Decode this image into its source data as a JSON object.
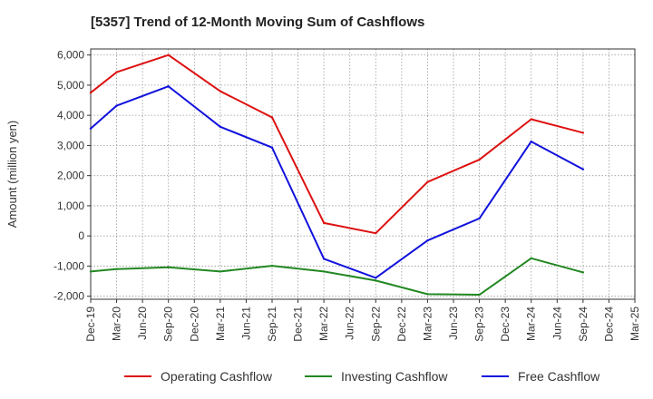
{
  "title": "[5357]  Trend of 12-Month Moving Sum of Cashflows",
  "chart_data": {
    "type": "line",
    "title": "[5357]  Trend of 12-Month Moving Sum of Cashflows",
    "xlabel": "",
    "ylabel": "Amount (million yen)",
    "ylim": [
      -2100,
      6200
    ],
    "yticks": [
      -2000,
      -1000,
      0,
      1000,
      2000,
      3000,
      4000,
      5000,
      6000
    ],
    "ytick_labels": [
      "-2,000",
      "-1,000",
      "0",
      "1,000",
      "2,000",
      "3,000",
      "4,000",
      "5,000",
      "6,000"
    ],
    "categories": [
      "Dec-19",
      "Mar-20",
      "Jun-20",
      "Sep-20",
      "Dec-20",
      "Mar-21",
      "Jun-21",
      "Sep-21",
      "Dec-21",
      "Mar-22",
      "Jun-22",
      "Sep-22",
      "Dec-22",
      "Mar-23",
      "Jun-23",
      "Sep-23",
      "Dec-23",
      "Mar-24",
      "Jun-24",
      "Sep-24",
      "Dec-24",
      "Mar-25"
    ],
    "grid": true,
    "legend": "bottom",
    "series": [
      {
        "name": "Operating Cashflow",
        "color": "#dd1111",
        "points": [
          [
            "Dec-19",
            4750
          ],
          [
            "Mar-20",
            5430
          ],
          [
            "Sep-20",
            6000
          ],
          [
            "Mar-21",
            4800
          ],
          [
            "Sep-21",
            3930
          ],
          [
            "Mar-22",
            430
          ],
          [
            "Sep-22",
            90
          ],
          [
            "Mar-23",
            1790
          ],
          [
            "Sep-23",
            2530
          ],
          [
            "Mar-24",
            3870
          ],
          [
            "Sep-24",
            3420
          ]
        ]
      },
      {
        "name": "Investing Cashflow",
        "color": "#228822",
        "points": [
          [
            "Dec-19",
            -1180
          ],
          [
            "Mar-20",
            -1100
          ],
          [
            "Sep-20",
            -1040
          ],
          [
            "Mar-21",
            -1180
          ],
          [
            "Sep-21",
            -990
          ],
          [
            "Mar-22",
            -1180
          ],
          [
            "Sep-22",
            -1480
          ],
          [
            "Mar-23",
            -1930
          ],
          [
            "Sep-23",
            -1950
          ],
          [
            "Mar-24",
            -740
          ],
          [
            "Sep-24",
            -1210
          ]
        ]
      },
      {
        "name": "Free Cashflow",
        "color": "#1111dd",
        "points": [
          [
            "Dec-19",
            3560
          ],
          [
            "Mar-20",
            4320
          ],
          [
            "Sep-20",
            4960
          ],
          [
            "Mar-21",
            3620
          ],
          [
            "Sep-21",
            2930
          ],
          [
            "Mar-22",
            -760
          ],
          [
            "Sep-22",
            -1390
          ],
          [
            "Mar-23",
            -150
          ],
          [
            "Sep-23",
            580
          ],
          [
            "Mar-24",
            3130
          ],
          [
            "Sep-24",
            2210
          ]
        ]
      }
    ]
  }
}
